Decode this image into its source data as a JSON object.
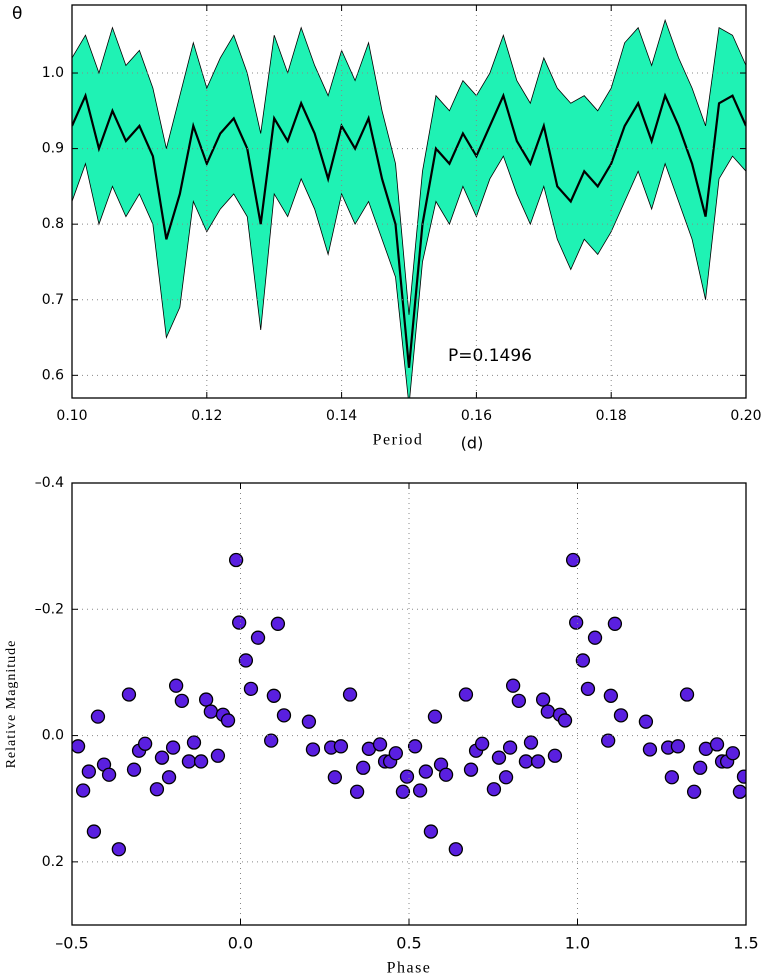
{
  "chart_data": [
    {
      "type": "band-line",
      "y_label": "θ",
      "x_label": "Period",
      "x_label_unit": "(d)",
      "annotation": "P=0.1496",
      "color": "#000000",
      "band_color": "#1ff2b4",
      "grid": true,
      "xlim": [
        0.1,
        0.2
      ],
      "xticks": [
        {
          "value": 0.1,
          "label": "0.10"
        },
        0.12,
        0.14,
        0.16,
        0.18,
        {
          "value": 0.2,
          "label": "0.20"
        }
      ],
      "ylim": [
        0.57,
        1.09
      ],
      "yticks": [
        0.6,
        0.7,
        0.8,
        0.9,
        {
          "value": 1.0,
          "label": "1.0"
        }
      ],
      "x": [
        0.1,
        0.102,
        0.104,
        0.106,
        0.108,
        0.11,
        0.112,
        0.114,
        0.116,
        0.118,
        0.12,
        0.122,
        0.124,
        0.126,
        0.128,
        0.13,
        0.132,
        0.134,
        0.136,
        0.138,
        0.14,
        0.142,
        0.144,
        0.146,
        0.148,
        0.15,
        0.152,
        0.154,
        0.156,
        0.158,
        0.16,
        0.162,
        0.164,
        0.166,
        0.168,
        0.17,
        0.172,
        0.174,
        0.176,
        0.178,
        0.18,
        0.182,
        0.184,
        0.186,
        0.188,
        0.19,
        0.192,
        0.194,
        0.196,
        0.198,
        0.2
      ],
      "values": [
        0.93,
        0.97,
        0.9,
        0.95,
        0.91,
        0.93,
        0.89,
        0.78,
        0.84,
        0.93,
        0.88,
        0.92,
        0.94,
        0.9,
        0.8,
        0.94,
        0.91,
        0.96,
        0.92,
        0.86,
        0.93,
        0.9,
        0.94,
        0.86,
        0.8,
        0.61,
        0.8,
        0.9,
        0.88,
        0.92,
        0.89,
        0.93,
        0.97,
        0.91,
        0.88,
        0.93,
        0.85,
        0.83,
        0.87,
        0.85,
        0.88,
        0.93,
        0.96,
        0.91,
        0.97,
        0.93,
        0.88,
        0.81,
        0.96,
        0.97,
        0.93
      ],
      "upper": [
        1.02,
        1.05,
        1.0,
        1.06,
        1.01,
        1.03,
        0.98,
        0.9,
        0.97,
        1.04,
        0.98,
        1.02,
        1.05,
        1.0,
        0.92,
        1.05,
        1.0,
        1.06,
        1.01,
        0.97,
        1.03,
        0.99,
        1.04,
        0.95,
        0.88,
        0.68,
        0.87,
        0.97,
        0.95,
        0.99,
        0.97,
        1.0,
        1.05,
        0.99,
        0.96,
        1.02,
        0.98,
        0.96,
        0.97,
        0.95,
        0.98,
        1.04,
        1.06,
        1.01,
        1.07,
        1.02,
        0.98,
        0.93,
        1.06,
        1.05,
        1.01
      ],
      "lower": [
        0.83,
        0.88,
        0.8,
        0.85,
        0.81,
        0.84,
        0.8,
        0.65,
        0.69,
        0.83,
        0.79,
        0.82,
        0.84,
        0.81,
        0.66,
        0.84,
        0.81,
        0.86,
        0.82,
        0.76,
        0.84,
        0.8,
        0.83,
        0.78,
        0.73,
        0.56,
        0.75,
        0.83,
        0.8,
        0.85,
        0.81,
        0.86,
        0.89,
        0.84,
        0.8,
        0.85,
        0.78,
        0.74,
        0.78,
        0.76,
        0.79,
        0.83,
        0.87,
        0.82,
        0.88,
        0.83,
        0.78,
        0.7,
        0.86,
        0.89,
        0.87
      ]
    },
    {
      "type": "scatter",
      "x_label": "Phase",
      "y_label": "Relative Magnitude",
      "color": "#5a1fe0",
      "grid": true,
      "y_inverted": true,
      "xlim": [
        -0.5,
        1.5
      ],
      "xticks": [
        {
          "value": -0.5,
          "label": "–0.5"
        },
        {
          "value": 0,
          "label": "0.0"
        },
        0.5,
        {
          "value": 1,
          "label": "1.0"
        },
        1.5
      ],
      "ylim": [
        -0.4,
        0.3
      ],
      "yticks": [
        {
          "value": -0.4,
          "label": "–0.4"
        },
        {
          "value": -0.2,
          "label": "–0.2"
        },
        {
          "value": 0,
          "label": "0.0"
        },
        0.2
      ],
      "x": [
        -0.482,
        -0.467,
        -0.45,
        -0.435,
        -0.423,
        -0.405,
        -0.39,
        -0.361,
        -0.331,
        -0.316,
        -0.301,
        -0.283,
        -0.248,
        -0.233,
        -0.212,
        -0.2,
        -0.191,
        -0.174,
        -0.153,
        -0.138,
        -0.117,
        -0.102,
        -0.088,
        -0.067,
        -0.052,
        -0.037,
        -0.013,
        -0.004,
        0.016,
        0.031,
        0.052,
        0.091,
        0.099,
        0.111,
        0.129,
        0.203,
        0.215,
        0.269,
        0.28,
        0.298,
        0.325,
        0.346,
        0.364,
        0.381,
        0.414,
        0.429,
        0.444,
        0.461,
        0.482,
        0.494,
        0.518,
        0.533,
        0.55,
        0.565,
        0.577,
        0.595,
        0.61,
        0.639,
        0.669,
        0.684,
        0.699,
        0.717,
        0.752,
        0.767,
        0.788,
        0.8,
        0.809,
        0.826,
        0.847,
        0.862,
        0.883,
        0.898,
        0.912,
        0.933,
        0.948,
        0.963,
        0.987,
        0.996,
        1.016,
        1.031,
        1.052,
        1.091,
        1.099,
        1.111,
        1.129,
        1.203,
        1.215,
        1.269,
        1.28,
        1.298,
        1.325,
        1.346,
        1.364,
        1.381,
        1.414,
        1.429,
        1.444,
        1.461,
        1.482,
        1.494
      ],
      "values": [
        0.017,
        0.087,
        0.057,
        0.152,
        -0.03,
        0.046,
        0.062,
        0.18,
        -0.065,
        0.054,
        0.024,
        0.013,
        0.085,
        0.035,
        0.066,
        0.019,
        -0.079,
        -0.055,
        0.041,
        0.011,
        0.041,
        -0.057,
        -0.038,
        0.032,
        -0.033,
        -0.024,
        -0.278,
        -0.179,
        -0.119,
        -0.074,
        -0.155,
        0.008,
        -0.063,
        -0.177,
        -0.032,
        -0.022,
        0.022,
        0.019,
        0.066,
        0.017,
        -0.065,
        0.089,
        0.051,
        0.021,
        0.014,
        0.041,
        0.041,
        0.028,
        0.089,
        0.065,
        0.017,
        0.087,
        0.057,
        0.152,
        -0.03,
        0.046,
        0.062,
        0.18,
        -0.065,
        0.054,
        0.024,
        0.013,
        0.085,
        0.035,
        0.066,
        0.019,
        -0.079,
        -0.055,
        0.041,
        0.011,
        0.041,
        -0.057,
        -0.038,
        0.032,
        -0.033,
        -0.024,
        -0.278,
        -0.179,
        -0.119,
        -0.074,
        -0.155,
        0.008,
        -0.063,
        -0.177,
        -0.032,
        -0.022,
        0.022,
        0.019,
        0.066,
        0.017,
        -0.065,
        0.089,
        0.051,
        0.021,
        0.014,
        0.041,
        0.041,
        0.028,
        0.089,
        0.065
      ]
    }
  ]
}
